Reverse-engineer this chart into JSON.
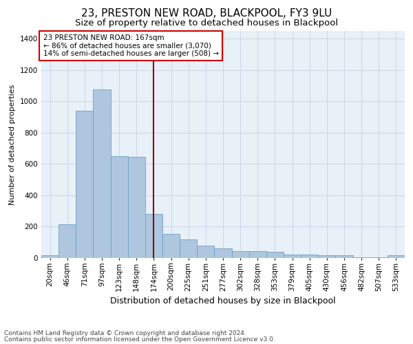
{
  "title": "23, PRESTON NEW ROAD, BLACKPOOL, FY3 9LU",
  "subtitle": "Size of property relative to detached houses in Blackpool",
  "xlabel": "Distribution of detached houses by size in Blackpool",
  "ylabel": "Number of detached properties",
  "categories": [
    "20sqm",
    "46sqm",
    "71sqm",
    "97sqm",
    "123sqm",
    "148sqm",
    "174sqm",
    "200sqm",
    "225sqm",
    "251sqm",
    "277sqm",
    "302sqm",
    "328sqm",
    "353sqm",
    "379sqm",
    "405sqm",
    "430sqm",
    "456sqm",
    "482sqm",
    "507sqm",
    "533sqm"
  ],
  "values": [
    18,
    215,
    940,
    1075,
    650,
    648,
    280,
    155,
    120,
    80,
    60,
    45,
    45,
    38,
    20,
    20,
    18,
    17,
    5,
    5,
    18
  ],
  "bar_color": "#aec6de",
  "bar_edge_color": "#6fa0c8",
  "bg_color": "#e8f0f8",
  "grid_color": "#d0d8e8",
  "vline_x_idx": 6,
  "vline_color": "#8b0000",
  "annotation_text": "23 PRESTON NEW ROAD: 167sqm\n← 86% of detached houses are smaller (3,070)\n14% of semi-detached houses are larger (508) →",
  "annotation_box_color": "#ffffff",
  "annotation_box_edge_color": "#cc0000",
  "ylim": [
    0,
    1450
  ],
  "yticks": [
    0,
    200,
    400,
    600,
    800,
    1000,
    1200,
    1400
  ],
  "footer1": "Contains HM Land Registry data © Crown copyright and database right 2024.",
  "footer2": "Contains public sector information licensed under the Open Government Licence v3.0.",
  "title_fontsize": 11,
  "subtitle_fontsize": 9.5,
  "xlabel_fontsize": 9,
  "ylabel_fontsize": 8,
  "tick_fontsize": 7.5,
  "annotation_fontsize": 7.5,
  "footer_fontsize": 6.5
}
